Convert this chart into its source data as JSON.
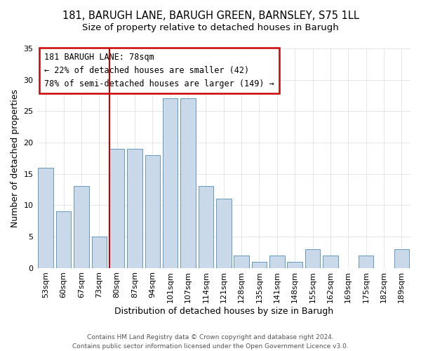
{
  "title": "181, BARUGH LANE, BARUGH GREEN, BARNSLEY, S75 1LL",
  "subtitle": "Size of property relative to detached houses in Barugh",
  "xlabel": "Distribution of detached houses by size in Barugh",
  "ylabel": "Number of detached properties",
  "footer_line1": "Contains HM Land Registry data © Crown copyright and database right 2024.",
  "footer_line2": "Contains public sector information licensed under the Open Government Licence v3.0.",
  "bar_labels": [
    "53sqm",
    "60sqm",
    "67sqm",
    "73sqm",
    "80sqm",
    "87sqm",
    "94sqm",
    "101sqm",
    "107sqm",
    "114sqm",
    "121sqm",
    "128sqm",
    "135sqm",
    "141sqm",
    "148sqm",
    "155sqm",
    "162sqm",
    "169sqm",
    "175sqm",
    "182sqm",
    "189sqm"
  ],
  "bar_values": [
    16,
    9,
    13,
    5,
    19,
    19,
    18,
    27,
    27,
    13,
    11,
    2,
    1,
    2,
    1,
    3,
    2,
    0,
    2,
    0,
    3
  ],
  "bar_color": "#c9d9ea",
  "bar_edge_color": "#6699bb",
  "reference_line_color": "#cc0000",
  "reference_line_bar_index": 4,
  "ylim": [
    0,
    35
  ],
  "yticks": [
    0,
    5,
    10,
    15,
    20,
    25,
    30,
    35
  ],
  "annotation_title": "181 BARUGH LANE: 78sqm",
  "annotation_line1": "← 22% of detached houses are smaller (42)",
  "annotation_line2": "78% of semi-detached houses are larger (149) →",
  "background_color": "#ffffff",
  "title_fontsize": 10.5,
  "subtitle_fontsize": 9.5,
  "axis_label_fontsize": 9,
  "tick_fontsize": 8,
  "annotation_fontsize": 8.5,
  "footer_fontsize": 6.5
}
